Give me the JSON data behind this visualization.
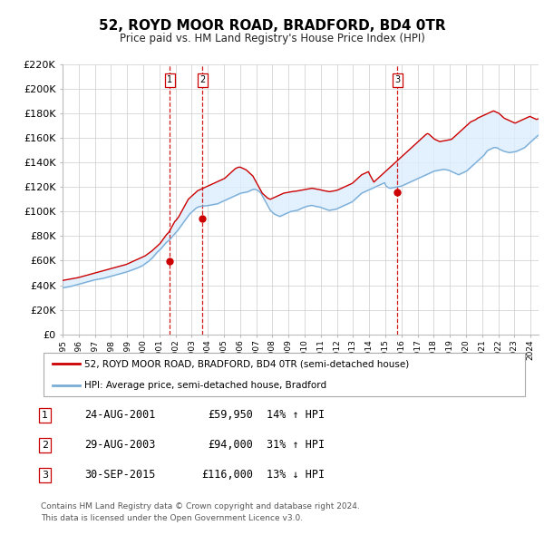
{
  "title": "52, ROYD MOOR ROAD, BRADFORD, BD4 0TR",
  "subtitle": "Price paid vs. HM Land Registry's House Price Index (HPI)",
  "legend_line1": "52, ROYD MOOR ROAD, BRADFORD, BD4 0TR (semi-detached house)",
  "legend_line2": "HPI: Average price, semi-detached house, Bradford",
  "footer1": "Contains HM Land Registry data © Crown copyright and database right 2024.",
  "footer2": "This data is licensed under the Open Government Licence v3.0.",
  "sale_dates_str": [
    "24-AUG-2001",
    "29-AUG-2003",
    "30-SEP-2015"
  ],
  "sale_prices": [
    59950,
    94000,
    116000
  ],
  "sale_hpi_pct": [
    "14% ↑ HPI",
    "31% ↑ HPI",
    "13% ↓ HPI"
  ],
  "sale_labels": [
    "1",
    "2",
    "3"
  ],
  "sale_years": [
    2001.65,
    2003.66,
    2015.75
  ],
  "property_line_color": "#cc0000",
  "hpi_line_color": "#7aadd6",
  "vline_color": "#cc0000",
  "shade_color": "#ddeeff",
  "grid_color": "#cccccc",
  "background_color": "#ffffff",
  "ylim": [
    0,
    220000
  ],
  "yticks": [
    0,
    20000,
    40000,
    60000,
    80000,
    100000,
    120000,
    140000,
    160000,
    180000,
    200000,
    220000
  ],
  "hpi_monthly": {
    "start_year": 1995,
    "start_month": 1,
    "values": [
      38000,
      38200,
      38400,
      38600,
      38800,
      39000,
      39200,
      39500,
      39800,
      40100,
      40400,
      40700,
      41000,
      41300,
      41600,
      41900,
      42200,
      42500,
      42800,
      43100,
      43400,
      43700,
      44000,
      44300,
      44500,
      44700,
      44900,
      45100,
      45300,
      45500,
      45700,
      46000,
      46300,
      46600,
      46900,
      47200,
      47500,
      47800,
      48100,
      48400,
      48700,
      49000,
      49300,
      49600,
      49900,
      50200,
      50500,
      50800,
      51200,
      51600,
      52000,
      52400,
      52800,
      53200,
      53600,
      54000,
      54500,
      55000,
      55500,
      56000,
      56800,
      57600,
      58400,
      59200,
      60000,
      61000,
      62000,
      63200,
      64500,
      65800,
      67100,
      68000,
      69000,
      70200,
      71500,
      72800,
      74000,
      75200,
      76000,
      77000,
      78200,
      79500,
      80800,
      82000,
      83200,
      84500,
      86000,
      87500,
      89000,
      90500,
      92000,
      93500,
      95000,
      96500,
      98000,
      99000,
      100000,
      101000,
      102000,
      103000,
      103500,
      104000,
      104200,
      104400,
      104500,
      104600,
      104700,
      104800,
      105000,
      105200,
      105400,
      105600,
      105800,
      106000,
      106200,
      106400,
      107000,
      107500,
      108000,
      108500,
      109000,
      109500,
      110000,
      110500,
      111000,
      111500,
      112000,
      112500,
      113000,
      113500,
      114000,
      114500,
      115000,
      115200,
      115400,
      115600,
      115800,
      116000,
      116500,
      117000,
      117500,
      118000,
      118200,
      118000,
      117500,
      117000,
      116000,
      115000,
      113000,
      111000,
      109000,
      107000,
      105000,
      103000,
      101000,
      100000,
      99000,
      98000,
      97500,
      97000,
      96500,
      96000,
      96500,
      97000,
      97500,
      98000,
      98500,
      99000,
      99500,
      100000,
      100200,
      100400,
      100600,
      100800,
      101000,
      101500,
      102000,
      102500,
      103000,
      103400,
      103800,
      104200,
      104500,
      104700,
      104900,
      105000,
      104800,
      104500,
      104200,
      104000,
      103800,
      103600,
      103200,
      102800,
      102400,
      102000,
      101600,
      101200,
      101000,
      101200,
      101400,
      101600,
      101800,
      102000,
      102500,
      103000,
      103500,
      104000,
      104500,
      105000,
      105500,
      106000,
      106500,
      107000,
      107500,
      108000,
      109000,
      110000,
      111000,
      112000,
      113000,
      114000,
      115000,
      115500,
      116000,
      116500,
      117000,
      117500,
      118000,
      118500,
      119000,
      119500,
      120000,
      120500,
      121000,
      121500,
      122000,
      122500,
      123000,
      123500,
      121000,
      120000,
      119500,
      119000,
      119200,
      119400,
      119600,
      119800,
      120000,
      120200,
      120400,
      120600,
      121000,
      121500,
      122000,
      122500,
      123000,
      123500,
      124000,
      124500,
      125000,
      125500,
      126000,
      126500,
      127000,
      127500,
      128000,
      128500,
      129000,
      129500,
      130000,
      130500,
      131000,
      131500,
      132000,
      132500,
      133000,
      133200,
      133400,
      133600,
      133800,
      134000,
      134200,
      134400,
      134200,
      134000,
      133800,
      133600,
      133000,
      132500,
      132000,
      131500,
      131000,
      130500,
      130000,
      130500,
      131000,
      131500,
      132000,
      132500,
      133000,
      134000,
      135000,
      136000,
      137000,
      138000,
      139000,
      140000,
      141000,
      142000,
      143000,
      144000,
      145000,
      146000,
      147500,
      149000,
      150000,
      150500,
      151000,
      151500,
      152000,
      152200,
      152000,
      151800,
      151000,
      150500,
      150000,
      149500,
      149000,
      148800,
      148500,
      148200,
      148000,
      148200,
      148400,
      148600,
      148800,
      149000,
      149500,
      150000,
      150500,
      151000,
      151500,
      152000,
      153000,
      154000,
      155000,
      156000,
      157000,
      158000,
      159000,
      160000,
      161000,
      162000,
      163000,
      164000,
      165000,
      166000,
      167000,
      168000
    ]
  },
  "prop_monthly": {
    "start_year": 1995,
    "start_month": 1,
    "values": [
      44000,
      44200,
      44400,
      44600,
      44800,
      45000,
      45200,
      45400,
      45600,
      45800,
      46000,
      46200,
      46500,
      46800,
      47100,
      47400,
      47700,
      48000,
      48300,
      48600,
      48900,
      49200,
      49500,
      49800,
      50100,
      50400,
      50700,
      51000,
      51300,
      51600,
      51900,
      52200,
      52500,
      52800,
      53100,
      53400,
      53700,
      54000,
      54300,
      54600,
      54900,
      55200,
      55500,
      55800,
      56100,
      56400,
      56700,
      57000,
      57500,
      58000,
      58500,
      59000,
      59500,
      60000,
      60500,
      61000,
      61500,
      62000,
      62500,
      63000,
      63500,
      64000,
      64800,
      65600,
      66400,
      67200,
      68000,
      69000,
      70000,
      71000,
      72000,
      73000,
      74000,
      75500,
      77000,
      78500,
      80000,
      81500,
      82500,
      84000,
      86000,
      88000,
      90000,
      92000,
      93000,
      94500,
      96000,
      98000,
      100000,
      102000,
      104000,
      106000,
      108000,
      110000,
      111000,
      112000,
      113000,
      114000,
      115000,
      116000,
      117000,
      117500,
      118000,
      118500,
      119000,
      119500,
      120000,
      120500,
      121000,
      121500,
      122000,
      122500,
      123000,
      123500,
      124000,
      124500,
      125000,
      125500,
      126000,
      126500,
      127000,
      128000,
      129000,
      130000,
      131000,
      132000,
      133000,
      134000,
      135000,
      135500,
      136000,
      136200,
      136000,
      135500,
      135000,
      134500,
      134000,
      133000,
      132000,
      131000,
      130000,
      129000,
      127000,
      125000,
      123000,
      121000,
      119000,
      117000,
      115000,
      114000,
      113000,
      112000,
      111000,
      110500,
      110000,
      110500,
      111000,
      111500,
      112000,
      112500,
      113000,
      113500,
      114000,
      114500,
      115000,
      115200,
      115400,
      115600,
      115800,
      116000,
      116200,
      116400,
      116500,
      116600,
      116800,
      117000,
      117200,
      117400,
      117600,
      117800,
      118000,
      118200,
      118400,
      118600,
      118800,
      119000,
      118800,
      118600,
      118400,
      118200,
      118000,
      117800,
      117500,
      117200,
      117000,
      116800,
      116600,
      116400,
      116200,
      116400,
      116600,
      116800,
      117000,
      117200,
      117500,
      118000,
      118500,
      119000,
      119500,
      120000,
      120500,
      121000,
      121500,
      122000,
      122500,
      123000,
      124000,
      125000,
      126000,
      127000,
      128000,
      129000,
      130000,
      130500,
      131000,
      131500,
      132000,
      132500,
      130000,
      128000,
      126000,
      124000,
      125000,
      126000,
      127000,
      128000,
      129000,
      130000,
      131000,
      132000,
      133000,
      134000,
      135000,
      136000,
      137000,
      138000,
      139000,
      140000,
      141000,
      142000,
      143000,
      144000,
      145000,
      146000,
      147000,
      148000,
      149000,
      150000,
      151000,
      152000,
      153000,
      154000,
      155000,
      156000,
      157000,
      158000,
      159000,
      160000,
      161000,
      162000,
      163000,
      163500,
      163000,
      162000,
      161000,
      160000,
      159000,
      158500,
      158000,
      157500,
      157000,
      157200,
      157400,
      157600,
      157800,
      158000,
      158200,
      158400,
      158600,
      159000,
      160000,
      161000,
      162000,
      163000,
      164000,
      165000,
      166000,
      167000,
      168000,
      169000,
      170000,
      171000,
      172000,
      173000,
      173500,
      174000,
      174500,
      175000,
      176000,
      176500,
      177000,
      177500,
      178000,
      178500,
      179000,
      179500,
      180000,
      180500,
      181000,
      181500,
      182000,
      181500,
      181000,
      180500,
      180000,
      179000,
      178000,
      177000,
      176000,
      175500,
      175000,
      174500,
      174000,
      173500,
      173000,
      172500,
      172000,
      172500,
      173000,
      173500,
      174000,
      174500,
      175000,
      175500,
      176000,
      176500,
      177000,
      177500,
      177000,
      176500,
      176000,
      175500,
      175000,
      175500,
      176000,
      176500,
      177000,
      177500,
      178000,
      178500
    ]
  }
}
